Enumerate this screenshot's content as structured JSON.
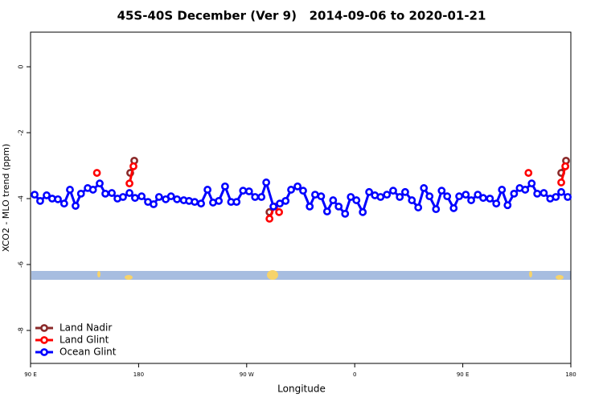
{
  "chart_data": {
    "type": "line",
    "title": "45S-40S December (Ver 9)   2014-09-06 to 2020-01-21",
    "x_label": "Longitude",
    "y_label": "XCO2 - MLO trend (ppm)",
    "xlim": [
      90,
      540
    ],
    "ylim": [
      -9,
      1.05
    ],
    "xticks": [
      {
        "value": 90,
        "label": "90 E"
      },
      {
        "value": 180,
        "label": "180"
      },
      {
        "value": 270,
        "label": "90 W"
      },
      {
        "value": 360,
        "label": "0"
      },
      {
        "value": 450,
        "label": "90 E"
      },
      {
        "value": 540,
        "label": "180"
      }
    ],
    "yticks": [
      0,
      -2,
      -4,
      -6,
      -8
    ],
    "legend": "bottomleft",
    "series": [
      {
        "name": "Land Nadir",
        "color": "#8b2a2a",
        "x": [
          173,
          176.4,
          289,
          532,
          536
        ],
        "values": [
          -3.22,
          -2.85,
          -4.41,
          -3.22,
          -2.85
        ]
      },
      {
        "name": "Land Glint",
        "color": "#ff0000",
        "x": [
          145.3,
          172.4,
          175.7,
          289,
          293,
          297,
          504.7,
          532,
          535.4
        ],
        "values": [
          -3.22,
          -3.54,
          -3.02,
          -4.61,
          -4.24,
          -4.41,
          -3.22,
          -3.51,
          -3.02
        ]
      },
      {
        "name": "Ocean Glint",
        "color": "#0000ff",
        "x": [
          93.4,
          98,
          103.4,
          108,
          112.8,
          118,
          122.8,
          127.5,
          132,
          137.6,
          142,
          147.6,
          152.3,
          157.7,
          162.4,
          167,
          172.4,
          177,
          182.5,
          187.8,
          192.5,
          197,
          202.6,
          207,
          212,
          217.6,
          222,
          226.7,
          232,
          237.4,
          242,
          246.8,
          252,
          257,
          261.6,
          267,
          272,
          277,
          282.3,
          286.3,
          292.3,
          297.6,
          302.4,
          307,
          312.4,
          317,
          322.5,
          327,
          332,
          337,
          342,
          346.6,
          352,
          356.7,
          361.4,
          366.7,
          372,
          376.8,
          381.5,
          386.8,
          392,
          397.5,
          402,
          407.6,
          412.9,
          417.6,
          422.3,
          427.7,
          432.4,
          437,
          442.4,
          447,
          452.5,
          457,
          462.5,
          467,
          472.6,
          477.9,
          482.6,
          487.3,
          492.7,
          497.4,
          502,
          507.4,
          512,
          517.5,
          522.8,
          527.5,
          532,
          537.4
        ],
        "values": [
          -3.88,
          -4.07,
          -3.9,
          -4.0,
          -4.02,
          -4.15,
          -3.73,
          -4.22,
          -3.85,
          -3.68,
          -3.73,
          -3.54,
          -3.85,
          -3.83,
          -4.0,
          -3.95,
          -3.83,
          -3.98,
          -3.93,
          -4.1,
          -4.17,
          -3.95,
          -4.02,
          -3.93,
          -4.02,
          -4.05,
          -4.07,
          -4.1,
          -4.15,
          -3.73,
          -4.12,
          -4.07,
          -3.63,
          -4.1,
          -4.1,
          -3.76,
          -3.78,
          -3.95,
          -3.95,
          -3.51,
          -4.24,
          -4.15,
          -4.07,
          -3.73,
          -3.63,
          -3.76,
          -4.24,
          -3.88,
          -3.93,
          -4.39,
          -4.05,
          -4.24,
          -4.46,
          -3.95,
          -4.05,
          -4.41,
          -3.8,
          -3.9,
          -3.95,
          -3.88,
          -3.76,
          -3.95,
          -3.8,
          -4.05,
          -4.27,
          -3.68,
          -3.93,
          -4.32,
          -3.76,
          -3.93,
          -4.29,
          -3.93,
          -3.88,
          -4.05,
          -3.88,
          -3.98,
          -4.0,
          -4.15,
          -3.73,
          -4.2,
          -3.85,
          -3.68,
          -3.73,
          -3.54,
          -3.85,
          -3.83,
          -4.0,
          -3.95,
          -3.8,
          -3.95
        ]
      }
    ]
  }
}
